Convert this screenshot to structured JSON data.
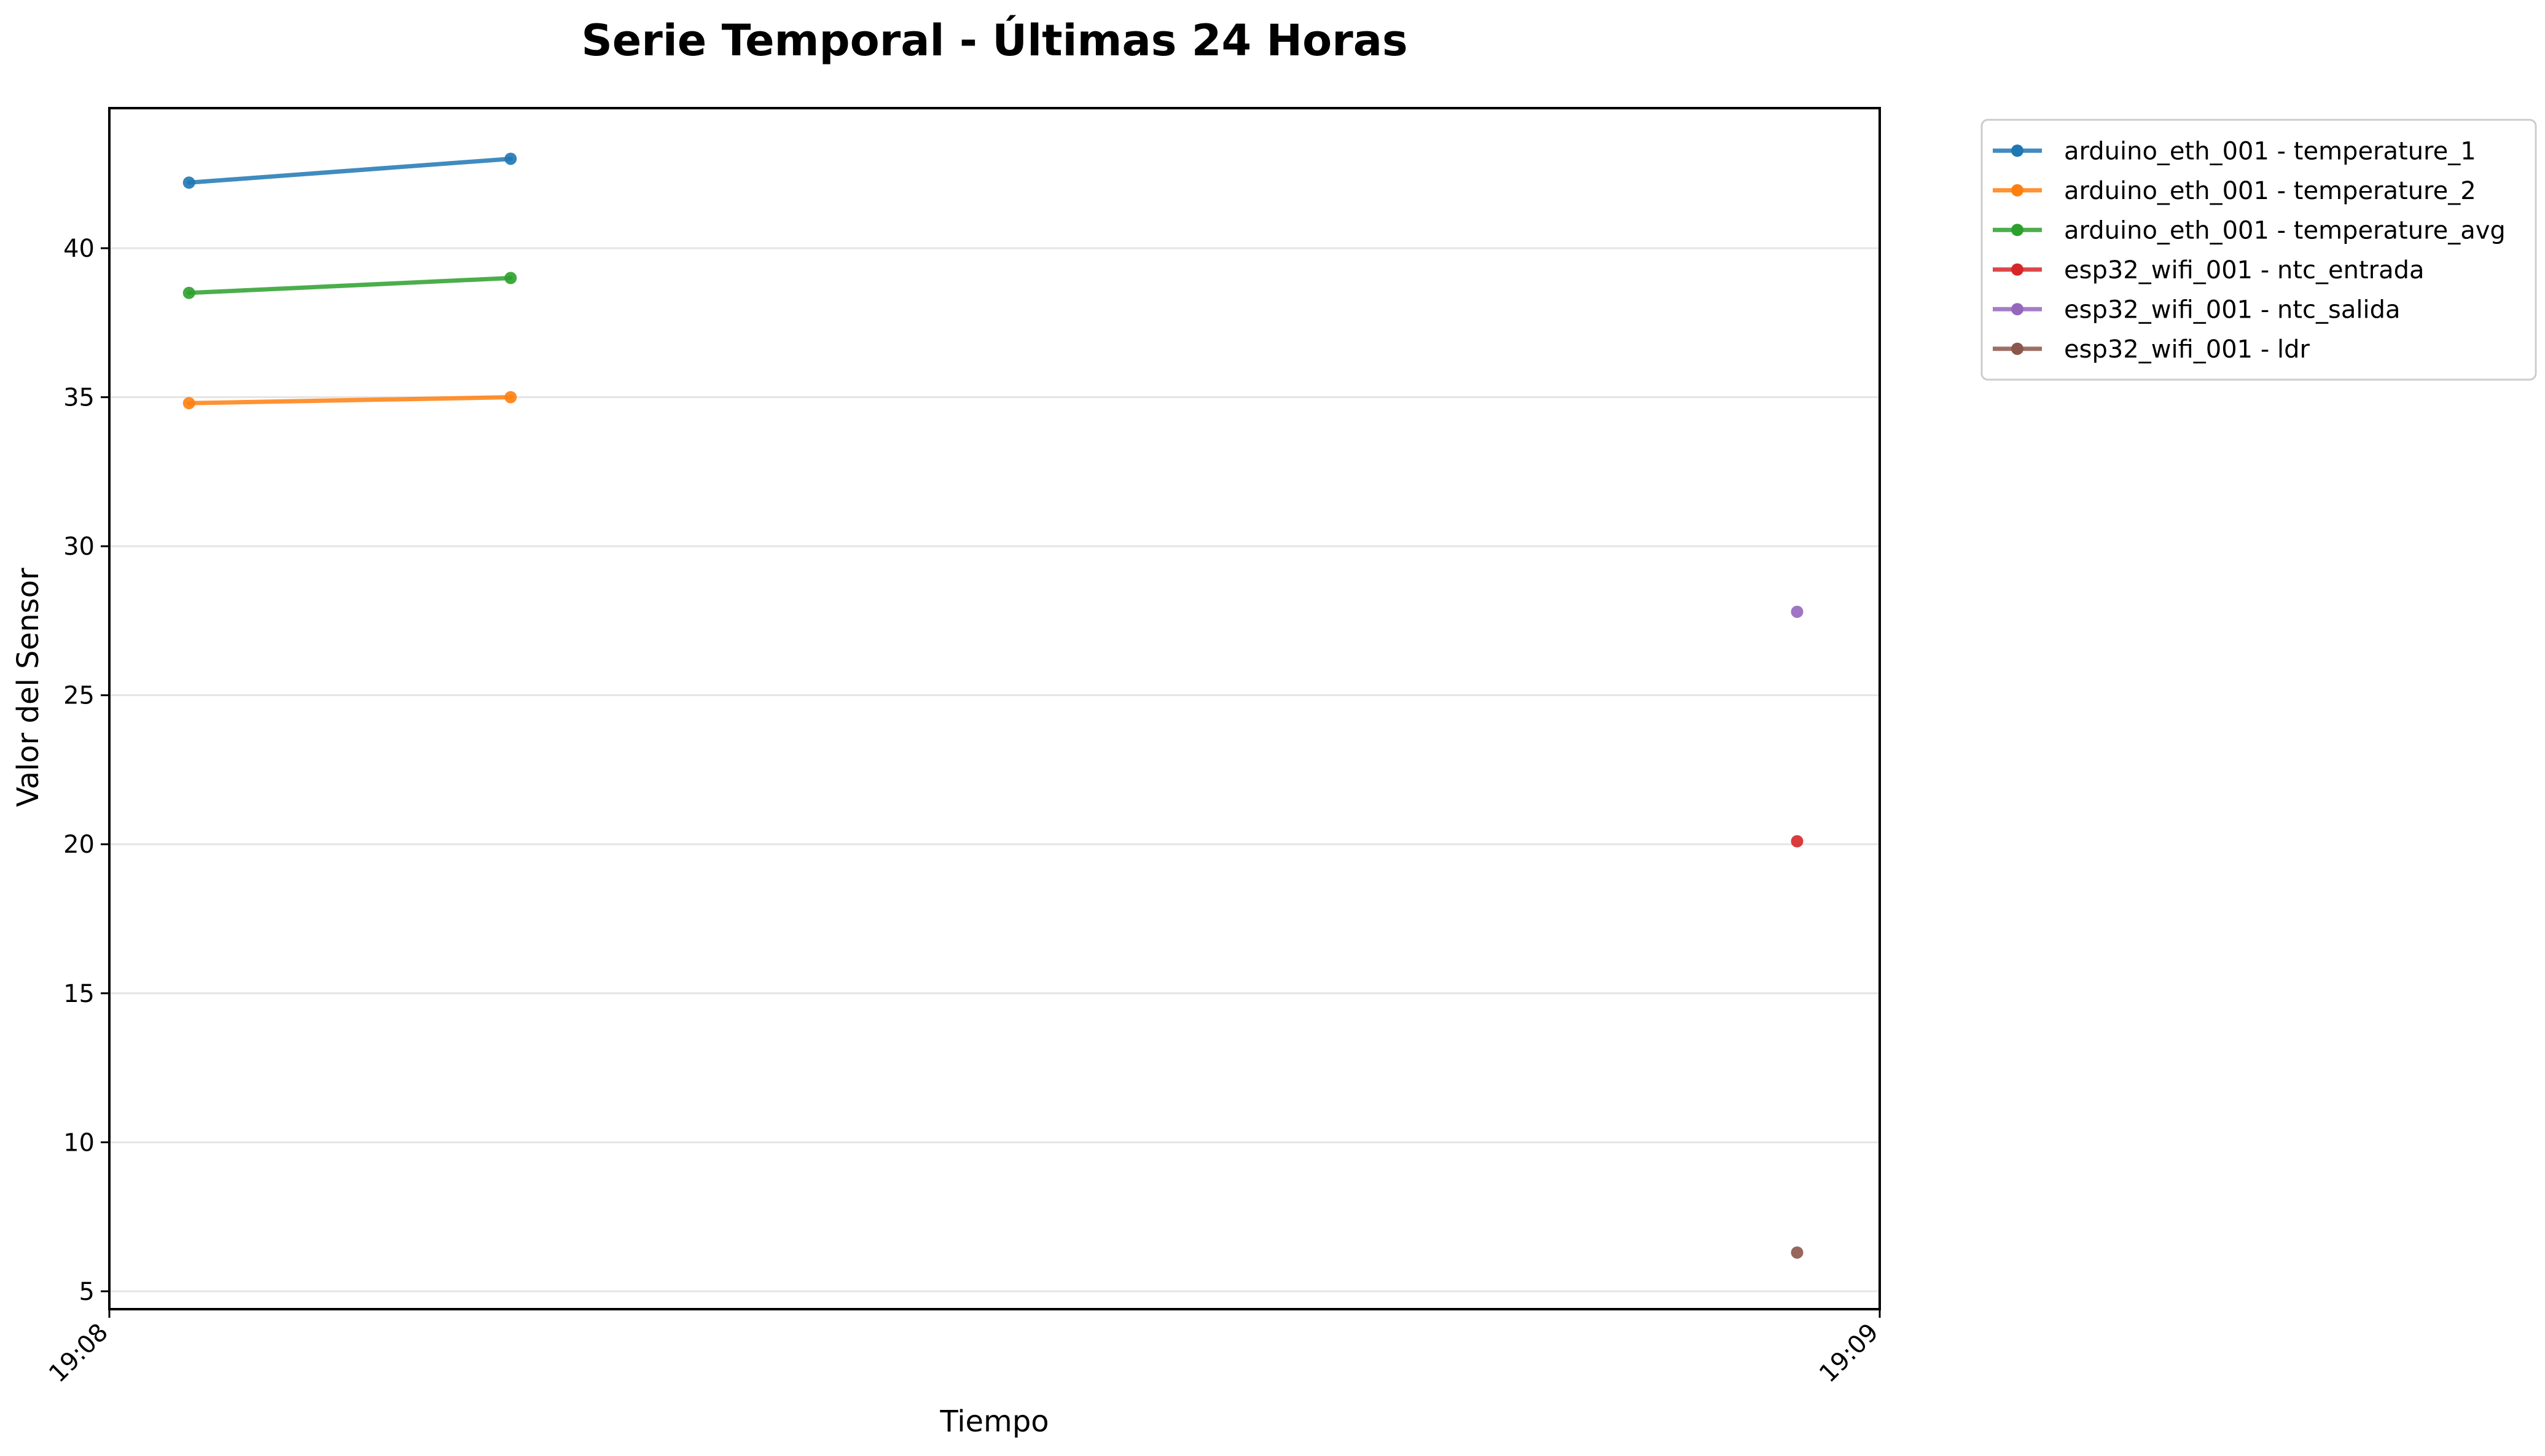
{
  "chart_data": {
    "type": "line",
    "title": "Serie Temporal - Últimas 24 Horas",
    "xlabel": "Tiempo",
    "ylabel": "Valor del Sensor",
    "x_axis": {
      "type": "time",
      "range": [
        "19:08:00",
        "19:09:00"
      ],
      "ticks": [
        "19:08",
        "19:09"
      ]
    },
    "ylim": [
      4.4,
      44.7
    ],
    "yticks": [
      5,
      10,
      15,
      20,
      25,
      30,
      35,
      40
    ],
    "grid": "horizontal",
    "legend_position": "outside top-right",
    "series": [
      {
        "name": "arduino_eth_001 - temperature_1",
        "color": "#1f77b4",
        "points": [
          {
            "x": "19:08:02.7",
            "y": 42.2
          },
          {
            "x": "19:08:13.6",
            "y": 43.0
          }
        ]
      },
      {
        "name": "arduino_eth_001 - temperature_2",
        "color": "#ff7f0e",
        "points": [
          {
            "x": "19:08:02.7",
            "y": 34.8
          },
          {
            "x": "19:08:13.6",
            "y": 35.0
          }
        ]
      },
      {
        "name": "arduino_eth_001 - temperature_avg",
        "color": "#2ca02c",
        "points": [
          {
            "x": "19:08:02.7",
            "y": 38.5
          },
          {
            "x": "19:08:13.6",
            "y": 39.0
          }
        ]
      },
      {
        "name": "esp32_wifi_001 - ntc_entrada",
        "color": "#d62728",
        "points": [
          {
            "x": "19:08:57.2",
            "y": 20.1
          }
        ]
      },
      {
        "name": "esp32_wifi_001 - ntc_salida",
        "color": "#9467bd",
        "points": [
          {
            "x": "19:08:57.2",
            "y": 27.8
          }
        ]
      },
      {
        "name": "esp32_wifi_001 - ldr",
        "color": "#8c564b",
        "points": [
          {
            "x": "19:08:57.2",
            "y": 6.3
          }
        ]
      }
    ]
  }
}
